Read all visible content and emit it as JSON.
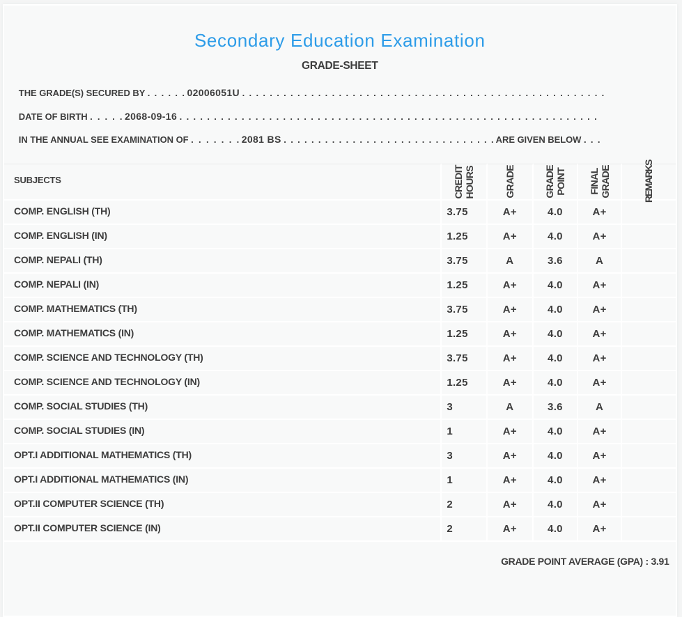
{
  "page": {
    "background": "#f4f5f5",
    "card_background": "#f8f9f9",
    "accent_color": "#2d9ce8",
    "text_color": "#3d3d3d"
  },
  "header": {
    "title": "Secondary Education Examination",
    "subtitle": "GRADE-SHEET"
  },
  "intro": {
    "line1": {
      "label": "THE GRADE(S) SECURED BY",
      "leader_dots": ". . . . . .",
      "value": "02006051U",
      "trailing_dots": ". . . . . . . . . . . . . . . . . . . . . . . . . . . . . . . . . . . . . . . . . . . . . . . . . . . . ."
    },
    "line2": {
      "label": "DATE OF BIRTH",
      "leader_dots": ". . . . .",
      "value": "2068-09-16",
      "trailing_dots": ". . . . . . . . . . . . . . . . . . . . . . . . . . . . . . . . . . . . . . . . . . . . . . . . . . . . . . . . . . . . ."
    },
    "line3": {
      "label": "IN THE ANNUAL SEE EXAMINATION OF",
      "leader_dots": ". . . . . . .",
      "value": "2081 BS",
      "middle_dots": ". . . . . . . . . . . . . . . . . . . . . . . . . . . . . . .",
      "suffix": "ARE GIVEN BELOW",
      "trailing_dots": ". . ."
    }
  },
  "table": {
    "columns": [
      "SUBJECTS",
      "CREDIT\nHOURS",
      "GRADE",
      "GRADE\nPOINT",
      "FINAL\nGRADE",
      "REMARKS"
    ],
    "rows": [
      {
        "subject": "COMP. ENGLISH (TH)",
        "credit_hours": "3.75",
        "grade": "A+",
        "grade_point": "4.0",
        "final_grade": "A+",
        "remarks": ""
      },
      {
        "subject": "COMP. ENGLISH (IN)",
        "credit_hours": "1.25",
        "grade": "A+",
        "grade_point": "4.0",
        "final_grade": "A+",
        "remarks": ""
      },
      {
        "subject": "COMP. NEPALI (TH)",
        "credit_hours": "3.75",
        "grade": "A",
        "grade_point": "3.6",
        "final_grade": "A",
        "remarks": ""
      },
      {
        "subject": "COMP. NEPALI (IN)",
        "credit_hours": "1.25",
        "grade": "A+",
        "grade_point": "4.0",
        "final_grade": "A+",
        "remarks": ""
      },
      {
        "subject": "COMP. MATHEMATICS (TH)",
        "credit_hours": "3.75",
        "grade": "A+",
        "grade_point": "4.0",
        "final_grade": "A+",
        "remarks": ""
      },
      {
        "subject": "COMP. MATHEMATICS (IN)",
        "credit_hours": "1.25",
        "grade": "A+",
        "grade_point": "4.0",
        "final_grade": "A+",
        "remarks": ""
      },
      {
        "subject": "COMP. SCIENCE AND TECHNOLOGY (TH)",
        "credit_hours": "3.75",
        "grade": "A+",
        "grade_point": "4.0",
        "final_grade": "A+",
        "remarks": ""
      },
      {
        "subject": "COMP. SCIENCE AND TECHNOLOGY (IN)",
        "credit_hours": "1.25",
        "grade": "A+",
        "grade_point": "4.0",
        "final_grade": "A+",
        "remarks": ""
      },
      {
        "subject": "COMP. SOCIAL STUDIES (TH)",
        "credit_hours": "3",
        "grade": "A",
        "grade_point": "3.6",
        "final_grade": "A",
        "remarks": ""
      },
      {
        "subject": "COMP. SOCIAL STUDIES (IN)",
        "credit_hours": "1",
        "grade": "A+",
        "grade_point": "4.0",
        "final_grade": "A+",
        "remarks": ""
      },
      {
        "subject": "OPT.I ADDITIONAL MATHEMATICS (TH)",
        "credit_hours": "3",
        "grade": "A+",
        "grade_point": "4.0",
        "final_grade": "A+",
        "remarks": ""
      },
      {
        "subject": "OPT.I ADDITIONAL MATHEMATICS (IN)",
        "credit_hours": "1",
        "grade": "A+",
        "grade_point": "4.0",
        "final_grade": "A+",
        "remarks": ""
      },
      {
        "subject": "OPT.II COMPUTER SCIENCE (TH)",
        "credit_hours": "2",
        "grade": "A+",
        "grade_point": "4.0",
        "final_grade": "A+",
        "remarks": ""
      },
      {
        "subject": "OPT.II COMPUTER SCIENCE (IN)",
        "credit_hours": "2",
        "grade": "A+",
        "grade_point": "4.0",
        "final_grade": "A+",
        "remarks": ""
      }
    ]
  },
  "footer": {
    "gpa_label": "GRADE POINT AVERAGE (GPA)",
    "separator": ":",
    "gpa_value": "3.91"
  }
}
